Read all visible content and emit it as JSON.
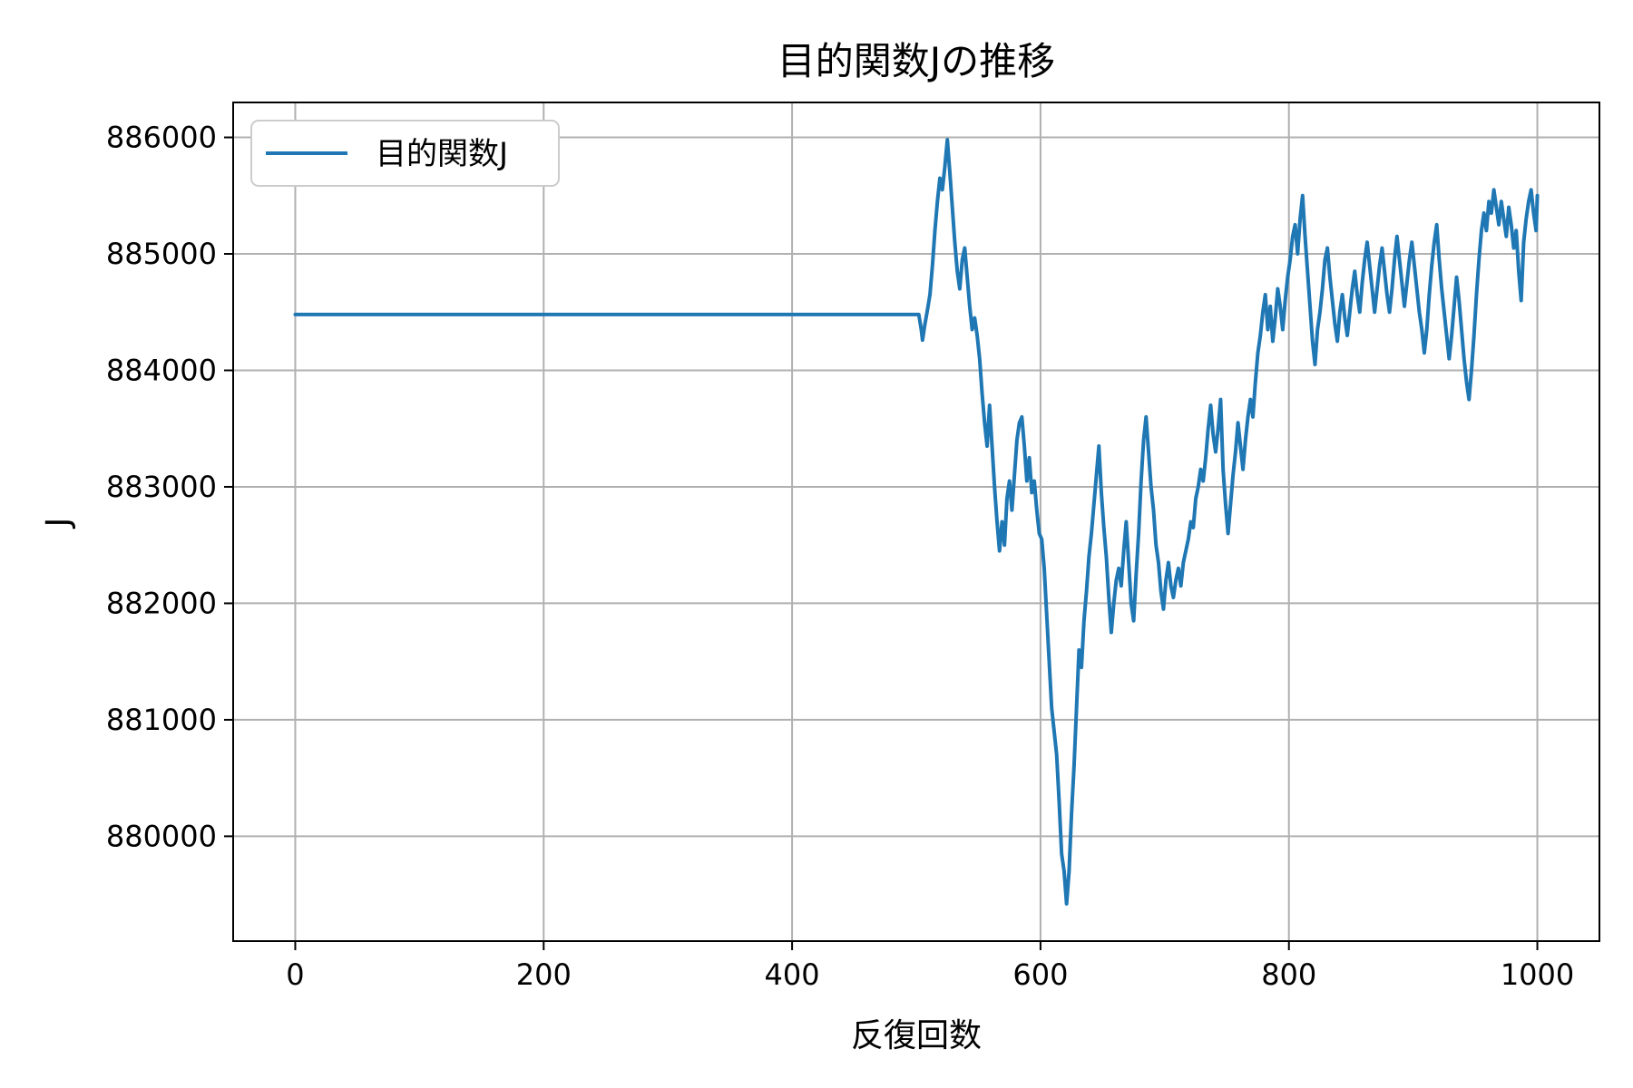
{
  "chart_data": {
    "type": "line",
    "title": "目的関数Jの推移",
    "xlabel": "反復回数",
    "ylabel": "J",
    "xlim": [
      -50,
      1050
    ],
    "ylim": [
      879100,
      886300
    ],
    "x_ticks": [
      0,
      200,
      400,
      600,
      800,
      1000
    ],
    "x_tick_labels": [
      "0",
      "200",
      "400",
      "600",
      "800",
      "1000"
    ],
    "y_ticks": [
      880000,
      881000,
      882000,
      883000,
      884000,
      885000,
      886000
    ],
    "y_tick_labels": [
      "880000",
      "881000",
      "882000",
      "883000",
      "884000",
      "885000",
      "886000"
    ],
    "grid": true,
    "legend": {
      "position": "top-left"
    },
    "series": [
      {
        "name": "目的関数J",
        "color": "#1f77b4",
        "points": [
          [
            0,
            884480
          ],
          [
            502,
            884480
          ],
          [
            504,
            884350
          ],
          [
            505,
            884260
          ],
          [
            507,
            884400
          ],
          [
            509,
            884520
          ],
          [
            511,
            884650
          ],
          [
            513,
            884900
          ],
          [
            515,
            885200
          ],
          [
            517,
            885450
          ],
          [
            519,
            885650
          ],
          [
            521,
            885550
          ],
          [
            523,
            885750
          ],
          [
            525,
            885980
          ],
          [
            527,
            885700
          ],
          [
            529,
            885400
          ],
          [
            531,
            885100
          ],
          [
            533,
            884850
          ],
          [
            535,
            884700
          ],
          [
            537,
            884950
          ],
          [
            539,
            885050
          ],
          [
            541,
            884800
          ],
          [
            543,
            884550
          ],
          [
            545,
            884350
          ],
          [
            547,
            884450
          ],
          [
            549,
            884300
          ],
          [
            551,
            884100
          ],
          [
            553,
            883800
          ],
          [
            555,
            883550
          ],
          [
            557,
            883350
          ],
          [
            559,
            883700
          ],
          [
            561,
            883350
          ],
          [
            563,
            883000
          ],
          [
            565,
            882700
          ],
          [
            567,
            882450
          ],
          [
            569,
            882700
          ],
          [
            571,
            882500
          ],
          [
            573,
            882900
          ],
          [
            575,
            883050
          ],
          [
            577,
            882800
          ],
          [
            579,
            883100
          ],
          [
            581,
            883400
          ],
          [
            583,
            883550
          ],
          [
            585,
            883600
          ],
          [
            587,
            883350
          ],
          [
            589,
            883050
          ],
          [
            591,
            883250
          ],
          [
            593,
            882950
          ],
          [
            595,
            883050
          ],
          [
            597,
            882800
          ],
          [
            599,
            882600
          ],
          [
            601,
            882550
          ],
          [
            603,
            882300
          ],
          [
            605,
            881900
          ],
          [
            607,
            881500
          ],
          [
            609,
            881100
          ],
          [
            611,
            880900
          ],
          [
            613,
            880700
          ],
          [
            615,
            880300
          ],
          [
            617,
            879850
          ],
          [
            619,
            879700
          ],
          [
            621,
            879420
          ],
          [
            623,
            879700
          ],
          [
            625,
            880200
          ],
          [
            627,
            880600
          ],
          [
            629,
            881100
          ],
          [
            631,
            881600
          ],
          [
            633,
            881450
          ],
          [
            635,
            881850
          ],
          [
            637,
            882100
          ],
          [
            639,
            882400
          ],
          [
            641,
            882600
          ],
          [
            643,
            882850
          ],
          [
            645,
            883100
          ],
          [
            647,
            883350
          ],
          [
            649,
            882950
          ],
          [
            651,
            882650
          ],
          [
            653,
            882400
          ],
          [
            655,
            882050
          ],
          [
            657,
            881750
          ],
          [
            659,
            882000
          ],
          [
            661,
            882200
          ],
          [
            663,
            882300
          ],
          [
            665,
            882150
          ],
          [
            667,
            882450
          ],
          [
            669,
            882700
          ],
          [
            671,
            882350
          ],
          [
            673,
            882000
          ],
          [
            675,
            881850
          ],
          [
            677,
            882250
          ],
          [
            679,
            882600
          ],
          [
            681,
            883050
          ],
          [
            683,
            883400
          ],
          [
            685,
            883600
          ],
          [
            687,
            883300
          ],
          [
            689,
            883000
          ],
          [
            691,
            882800
          ],
          [
            693,
            882500
          ],
          [
            695,
            882350
          ],
          [
            697,
            882100
          ],
          [
            699,
            881950
          ],
          [
            701,
            882200
          ],
          [
            703,
            882350
          ],
          [
            705,
            882150
          ],
          [
            707,
            882050
          ],
          [
            709,
            882200
          ],
          [
            711,
            882300
          ],
          [
            713,
            882150
          ],
          [
            715,
            882350
          ],
          [
            717,
            882450
          ],
          [
            719,
            882550
          ],
          [
            721,
            882700
          ],
          [
            723,
            882650
          ],
          [
            725,
            882900
          ],
          [
            727,
            883000
          ],
          [
            729,
            883150
          ],
          [
            731,
            883050
          ],
          [
            733,
            883250
          ],
          [
            735,
            883500
          ],
          [
            737,
            883700
          ],
          [
            739,
            883450
          ],
          [
            741,
            883300
          ],
          [
            743,
            883500
          ],
          [
            745,
            883750
          ],
          [
            747,
            883150
          ],
          [
            749,
            882850
          ],
          [
            751,
            882600
          ],
          [
            753,
            882850
          ],
          [
            755,
            883100
          ],
          [
            757,
            883300
          ],
          [
            759,
            883550
          ],
          [
            761,
            883350
          ],
          [
            763,
            883150
          ],
          [
            765,
            883400
          ],
          [
            767,
            883600
          ],
          [
            769,
            883750
          ],
          [
            771,
            883600
          ],
          [
            773,
            883900
          ],
          [
            775,
            884150
          ],
          [
            777,
            884300
          ],
          [
            779,
            884500
          ],
          [
            781,
            884650
          ],
          [
            783,
            884350
          ],
          [
            785,
            884550
          ],
          [
            787,
            884250
          ],
          [
            789,
            884450
          ],
          [
            791,
            884700
          ],
          [
            793,
            884550
          ],
          [
            795,
            884350
          ],
          [
            797,
            884600
          ],
          [
            799,
            884800
          ],
          [
            801,
            884950
          ],
          [
            803,
            885150
          ],
          [
            805,
            885250
          ],
          [
            807,
            885000
          ],
          [
            809,
            885300
          ],
          [
            811,
            885500
          ],
          [
            813,
            885150
          ],
          [
            815,
            884850
          ],
          [
            817,
            884550
          ],
          [
            819,
            884250
          ],
          [
            821,
            884050
          ],
          [
            823,
            884350
          ],
          [
            825,
            884500
          ],
          [
            827,
            884700
          ],
          [
            829,
            884950
          ],
          [
            831,
            885050
          ],
          [
            833,
            884800
          ],
          [
            835,
            884600
          ],
          [
            837,
            884400
          ],
          [
            839,
            884250
          ],
          [
            841,
            884500
          ],
          [
            843,
            884650
          ],
          [
            845,
            884450
          ],
          [
            847,
            884300
          ],
          [
            849,
            884500
          ],
          [
            851,
            884700
          ],
          [
            853,
            884850
          ],
          [
            855,
            884650
          ],
          [
            857,
            884500
          ],
          [
            859,
            884750
          ],
          [
            861,
            884950
          ],
          [
            863,
            885100
          ],
          [
            865,
            884900
          ],
          [
            867,
            884700
          ],
          [
            869,
            884500
          ],
          [
            871,
            884700
          ],
          [
            873,
            884900
          ],
          [
            875,
            885050
          ],
          [
            877,
            884850
          ],
          [
            879,
            884650
          ],
          [
            881,
            884500
          ],
          [
            883,
            884700
          ],
          [
            885,
            884950
          ],
          [
            887,
            885150
          ],
          [
            889,
            884950
          ],
          [
            891,
            884750
          ],
          [
            893,
            884550
          ],
          [
            895,
            884750
          ],
          [
            897,
            884950
          ],
          [
            899,
            885100
          ],
          [
            901,
            884900
          ],
          [
            903,
            884700
          ],
          [
            905,
            884500
          ],
          [
            907,
            884350
          ],
          [
            909,
            884150
          ],
          [
            911,
            884350
          ],
          [
            913,
            884650
          ],
          [
            915,
            884900
          ],
          [
            917,
            885100
          ],
          [
            919,
            885250
          ],
          [
            921,
            884950
          ],
          [
            923,
            884700
          ],
          [
            925,
            884500
          ],
          [
            927,
            884300
          ],
          [
            929,
            884100
          ],
          [
            931,
            884300
          ],
          [
            933,
            884550
          ],
          [
            935,
            884800
          ],
          [
            937,
            884600
          ],
          [
            939,
            884350
          ],
          [
            941,
            884100
          ],
          [
            943,
            883900
          ],
          [
            945,
            883750
          ],
          [
            947,
            884000
          ],
          [
            949,
            884300
          ],
          [
            951,
            884650
          ],
          [
            953,
            884950
          ],
          [
            955,
            885200
          ],
          [
            957,
            885350
          ],
          [
            959,
            885200
          ],
          [
            961,
            885450
          ],
          [
            963,
            885350
          ],
          [
            965,
            885550
          ],
          [
            967,
            885400
          ],
          [
            969,
            885250
          ],
          [
            971,
            885450
          ],
          [
            973,
            885300
          ],
          [
            975,
            885150
          ],
          [
            977,
            885400
          ],
          [
            979,
            885250
          ],
          [
            981,
            885050
          ],
          [
            983,
            885200
          ],
          [
            985,
            884850
          ],
          [
            987,
            884600
          ],
          [
            989,
            885100
          ],
          [
            991,
            885300
          ],
          [
            993,
            885450
          ],
          [
            995,
            885550
          ],
          [
            997,
            885350
          ],
          [
            999,
            885200
          ],
          [
            1000,
            885500
          ]
        ]
      }
    ]
  }
}
